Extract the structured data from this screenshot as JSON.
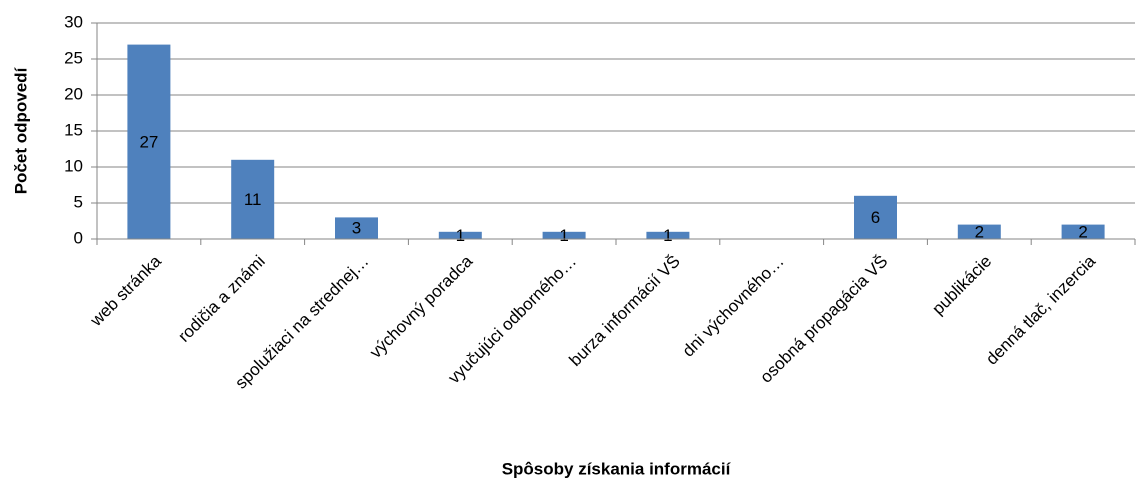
{
  "chart_data": {
    "type": "bar",
    "x_label": "Spôsoby získania informácií",
    "y_label": "Počet odpovedí",
    "categories": [
      "web stránka",
      "rodičia a známi",
      "spolužiaci na strednej…",
      "výchovný poradca",
      "vyučujúci odborného…",
      "burza informácií VŠ",
      "dni výchovného…",
      "osobná propagácia VŠ",
      "publikácie",
      "denná tlač, inzercia"
    ],
    "values": [
      27,
      11,
      3,
      1,
      1,
      1,
      null,
      6,
      2,
      2
    ],
    "color": "#4f81bd",
    "ylim": [
      0,
      30
    ],
    "yticks": [
      0,
      5,
      10,
      15,
      20,
      25,
      30
    ],
    "grid": true
  }
}
